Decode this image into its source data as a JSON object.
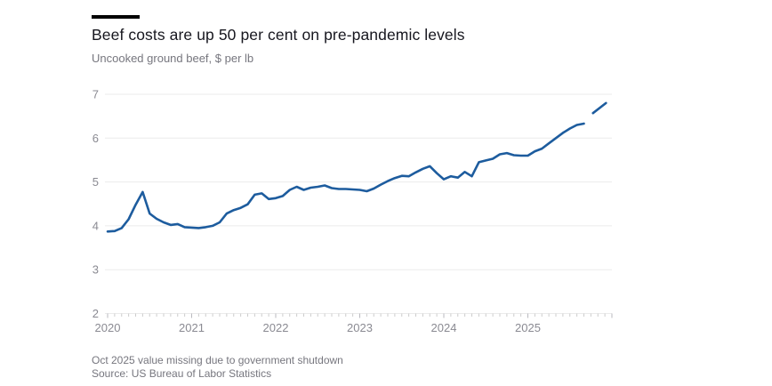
{
  "header": {
    "title": "Beef costs are up 50 per cent on pre-pandemic levels",
    "subtitle": "Uncooked ground beef, $ per lb"
  },
  "footer": {
    "note": "Oct 2025 value missing due to government shutdown",
    "source": "Source: US Bureau of Labor Statistics"
  },
  "chart_data": {
    "type": "line",
    "title": "Beef costs are up 50 per cent on pre-pandemic levels",
    "subtitle": "Uncooked ground beef, $ per lb",
    "xlabel": "",
    "ylabel": "$ per lb",
    "ylim": [
      2,
      7
    ],
    "y_ticks": [
      2,
      3,
      4,
      5,
      6,
      7
    ],
    "x_start": "2020-01",
    "x_end": "2025-11",
    "x_tick_interval": "monthly",
    "year_labels": [
      "2020",
      "2021",
      "2022",
      "2023",
      "2024",
      "2025"
    ],
    "grid": "horizontal-only",
    "legend": "none",
    "missing_data": {
      "month": "2025-10",
      "reason": "government shutdown"
    },
    "line_color": "#1d5c9e",
    "series": [
      {
        "name": "Uncooked ground beef, $ per lb",
        "frequency": "monthly",
        "start": "2020-01",
        "values": [
          3.87,
          3.88,
          3.95,
          4.15,
          4.48,
          4.77,
          4.28,
          4.16,
          4.08,
          4.02,
          4.04,
          3.97,
          3.96,
          3.95,
          3.97,
          4.0,
          4.08,
          4.28,
          4.36,
          4.41,
          4.49,
          4.71,
          4.74,
          4.61,
          4.63,
          4.68,
          4.82,
          4.89,
          4.82,
          4.87,
          4.89,
          4.92,
          4.86,
          4.84,
          4.84,
          4.83,
          4.82,
          4.79,
          4.85,
          4.94,
          5.02,
          5.09,
          5.14,
          5.13,
          5.22,
          5.3,
          5.36,
          5.2,
          5.06,
          5.13,
          5.1,
          5.23,
          5.13,
          5.45,
          5.49,
          5.53,
          5.63,
          5.66,
          5.61,
          5.6,
          5.6,
          5.7,
          5.76,
          5.88,
          6.0,
          6.12,
          6.22,
          6.3,
          6.33,
          null,
          6.7
        ]
      }
    ],
    "colors": {
      "line": "#1d5c9e",
      "gridline": "#ebebeb",
      "tick": "#cccccc",
      "axis_text": "#8a8a92",
      "title_text": "#17171f",
      "muted_text": "#76767e",
      "accent_bar": "#000000",
      "background": "#ffffff"
    }
  }
}
